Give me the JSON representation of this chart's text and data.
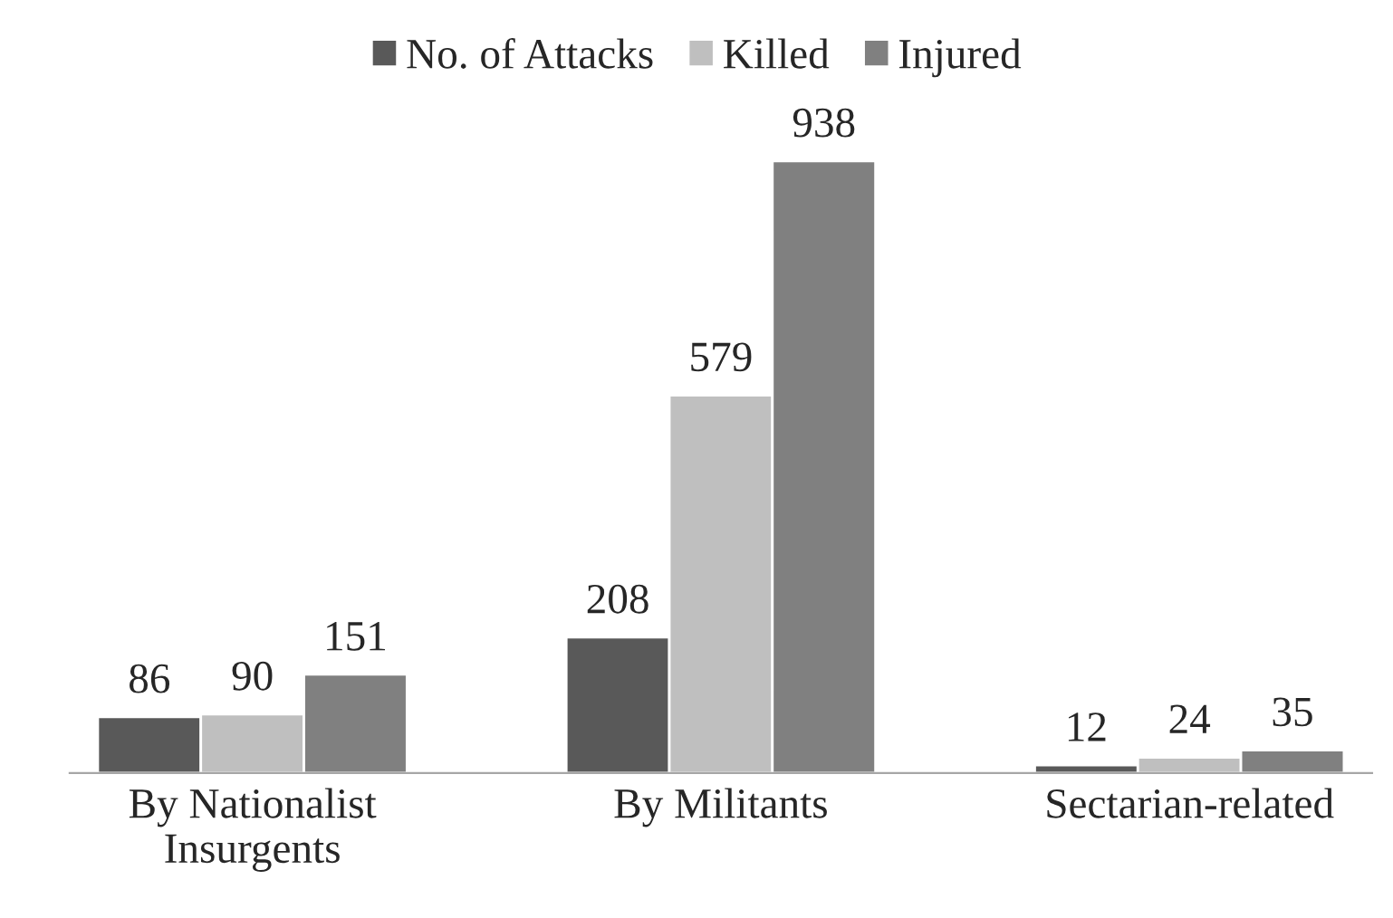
{
  "chart_data": {
    "type": "bar",
    "categories": [
      "By Nationalist\nInsurgents",
      "By Militants",
      "Sectarian-related"
    ],
    "series": [
      {
        "name": "No. of Attacks",
        "color": "#595959",
        "values": [
          86,
          208,
          12
        ]
      },
      {
        "name": "Killed",
        "color": "#bfbfbf",
        "values": [
          90,
          579,
          24
        ]
      },
      {
        "name": "Injured",
        "color": "#808080",
        "values": [
          151,
          938,
          35
        ]
      }
    ],
    "data_labels": true,
    "legend": "top",
    "grid": false
  }
}
